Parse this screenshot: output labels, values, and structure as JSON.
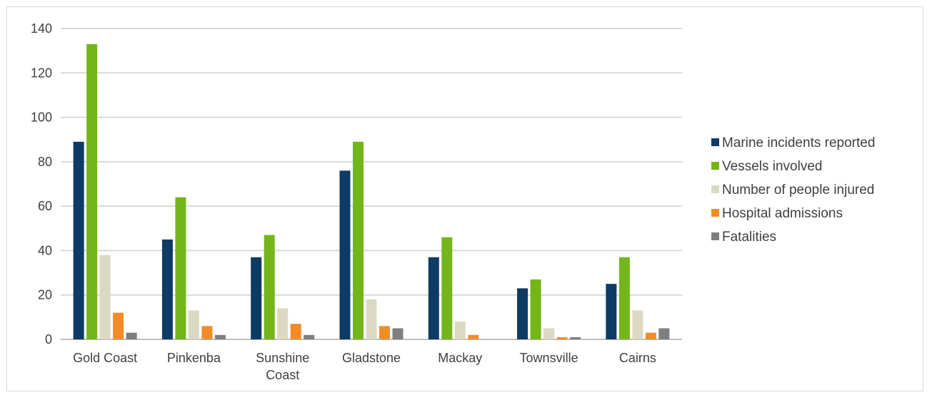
{
  "chart_data": {
    "type": "bar",
    "categories": [
      "Gold Coast",
      "Pinkenba",
      "Sunshine Coast",
      "Gladstone",
      "Mackay",
      "Townsville",
      "Cairns"
    ],
    "category_lines": [
      [
        "Gold Coast"
      ],
      [
        "Pinkenba"
      ],
      [
        "Sunshine",
        "Coast"
      ],
      [
        "Gladstone"
      ],
      [
        "Mackay"
      ],
      [
        "Townsville"
      ],
      [
        "Cairns"
      ]
    ],
    "series": [
      {
        "name": "Marine incidents reported",
        "color": "#0e3b63",
        "values": [
          89,
          45,
          37,
          76,
          37,
          23,
          25
        ]
      },
      {
        "name": "Vessels involved",
        "color": "#74b51a",
        "values": [
          133,
          64,
          47,
          89,
          46,
          27,
          37
        ]
      },
      {
        "name": "Number of people injured",
        "color": "#dcd9c3",
        "values": [
          38,
          13,
          14,
          18,
          8,
          5,
          13
        ]
      },
      {
        "name": "Hospital admissions",
        "color": "#f28c28",
        "values": [
          12,
          6,
          7,
          6,
          2,
          1,
          3
        ]
      },
      {
        "name": "Fatalities",
        "color": "#7f7f7f",
        "values": [
          3,
          2,
          2,
          5,
          0,
          1,
          5
        ]
      }
    ],
    "yticks": [
      0,
      20,
      40,
      60,
      80,
      100,
      120,
      140
    ],
    "ylim": [
      0,
      140
    ],
    "grid": true,
    "legend_position": "right"
  }
}
